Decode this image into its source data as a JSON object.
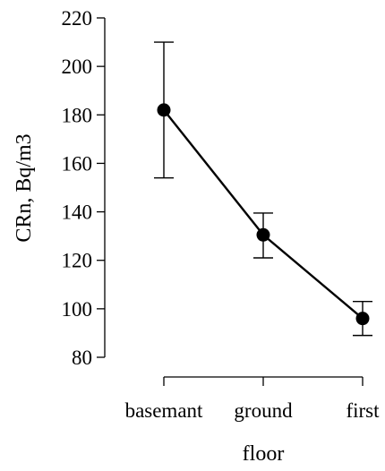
{
  "chart_data": {
    "type": "line",
    "title": "",
    "xlabel": "floor",
    "ylabel": "CRn, Bq/m3",
    "categories": [
      "basemant",
      "ground",
      "first"
    ],
    "series": [
      {
        "values": [
          182,
          130.5,
          96
        ],
        "error_low": [
          154,
          121,
          89
        ],
        "error_high": [
          210,
          139.5,
          103
        ]
      }
    ],
    "yticks": [
      "80",
      "100",
      "120",
      "140",
      "160",
      "180",
      "200",
      "220"
    ],
    "ylim": [
      80,
      220
    ],
    "grid": false,
    "legend": "none",
    "colors": {
      "line": "#000000",
      "marker": "#000000"
    }
  }
}
